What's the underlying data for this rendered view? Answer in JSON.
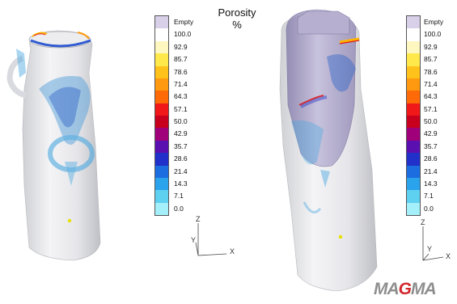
{
  "title": "Porosity\n%",
  "title_line1": "Porosity",
  "title_line2": "%",
  "legend": {
    "labels": [
      "Empty",
      "100.0",
      "92.9",
      "85.7",
      "78.6",
      "71.4",
      "64.3",
      "57.1",
      "50.0",
      "42.9",
      "35.7",
      "28.6",
      "21.4",
      "14.3",
      "7.1",
      "0.0"
    ],
    "colors": [
      "#d8cfe8",
      "#ffffff",
      "#fff7c0",
      "#ffe94a",
      "#ffc21a",
      "#ff9a10",
      "#ff6a08",
      "#f01818",
      "#c8001e",
      "#a0007a",
      "#5a10b0",
      "#2030c8",
      "#1c6ee0",
      "#2aa2ec",
      "#5ed0f0",
      "#a4f0fa"
    ]
  },
  "axes": {
    "z": "Z",
    "y": "Y",
    "x": "X"
  },
  "logo": {
    "text": "MAGMA"
  }
}
